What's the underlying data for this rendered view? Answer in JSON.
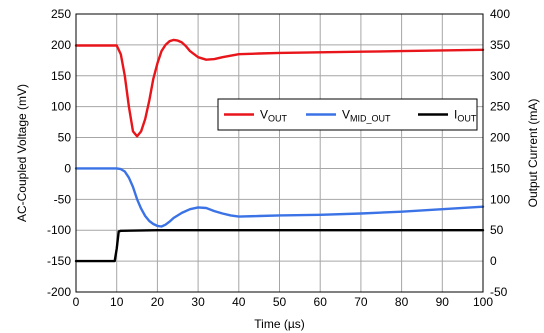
{
  "chart_data": {
    "type": "line",
    "xlabel": "Time (µs)",
    "ylabel_left": "AC-Coupled Voltage (mV)",
    "ylabel_right": "Output Current (mA)",
    "xlim": [
      0,
      100
    ],
    "ylim_left": [
      -200,
      250
    ],
    "ylim_right": [
      -50,
      400
    ],
    "x_ticks": [
      "0",
      "10",
      "20",
      "30",
      "40",
      "50",
      "60",
      "70",
      "80",
      "90",
      "100"
    ],
    "y_ticks_left": [
      "-200",
      "-150",
      "-100",
      "-50",
      "0",
      "50",
      "100",
      "150",
      "200",
      "250"
    ],
    "y_ticks_right": [
      "-50",
      "0",
      "50",
      "100",
      "150",
      "200",
      "250",
      "300",
      "350",
      "400"
    ],
    "grid": true,
    "legend_position": "right, mid-height",
    "legend": [
      {
        "main": "V",
        "sub": "OUT",
        "color": "#e8151b"
      },
      {
        "main": "V",
        "sub": "MID_OUT",
        "color": "#3b73e6"
      },
      {
        "main": "I",
        "sub": "OUT",
        "color": "#000000"
      }
    ],
    "series": [
      {
        "name": "V_OUT",
        "axis": "left",
        "color": "#e8151b",
        "x": [
          0,
          5,
          10,
          11,
          12,
          13,
          14,
          15,
          16,
          17,
          18,
          19,
          20,
          21,
          22,
          23,
          24,
          25,
          26,
          27,
          28,
          30,
          32,
          34,
          36,
          40,
          45,
          50,
          60,
          70,
          80,
          90,
          100
        ],
        "y": [
          199,
          199,
          199,
          185,
          150,
          100,
          60,
          52,
          60,
          80,
          110,
          145,
          170,
          190,
          200,
          206,
          208,
          207,
          204,
          198,
          190,
          180,
          176,
          177,
          180,
          185,
          186,
          187,
          188,
          189,
          190,
          191,
          192
        ]
      },
      {
        "name": "V_MID_OUT",
        "axis": "left",
        "color": "#3b73e6",
        "x": [
          0,
          10,
          11,
          12,
          13,
          14,
          15,
          16,
          17,
          18,
          19,
          20,
          21,
          22,
          23,
          24,
          25,
          26,
          28,
          30,
          32,
          34,
          36,
          38,
          40,
          45,
          50,
          60,
          70,
          80,
          90,
          100
        ],
        "y": [
          0,
          0,
          -1,
          -5,
          -15,
          -30,
          -50,
          -65,
          -77,
          -85,
          -90,
          -93,
          -94,
          -91,
          -86,
          -80,
          -76,
          -72,
          -66,
          -63,
          -64,
          -69,
          -73,
          -76,
          -78,
          -77,
          -76,
          -75,
          -73,
          -70,
          -66,
          -62
        ]
      },
      {
        "name": "I_OUT",
        "axis": "right",
        "color": "#000000",
        "x": [
          0,
          9.5,
          10,
          10.5,
          11,
          20,
          30,
          40,
          50,
          60,
          70,
          80,
          90,
          100
        ],
        "y": [
          0,
          0,
          20,
          48,
          49,
          50,
          50,
          50,
          50,
          50,
          50,
          50,
          50,
          50
        ]
      }
    ]
  }
}
